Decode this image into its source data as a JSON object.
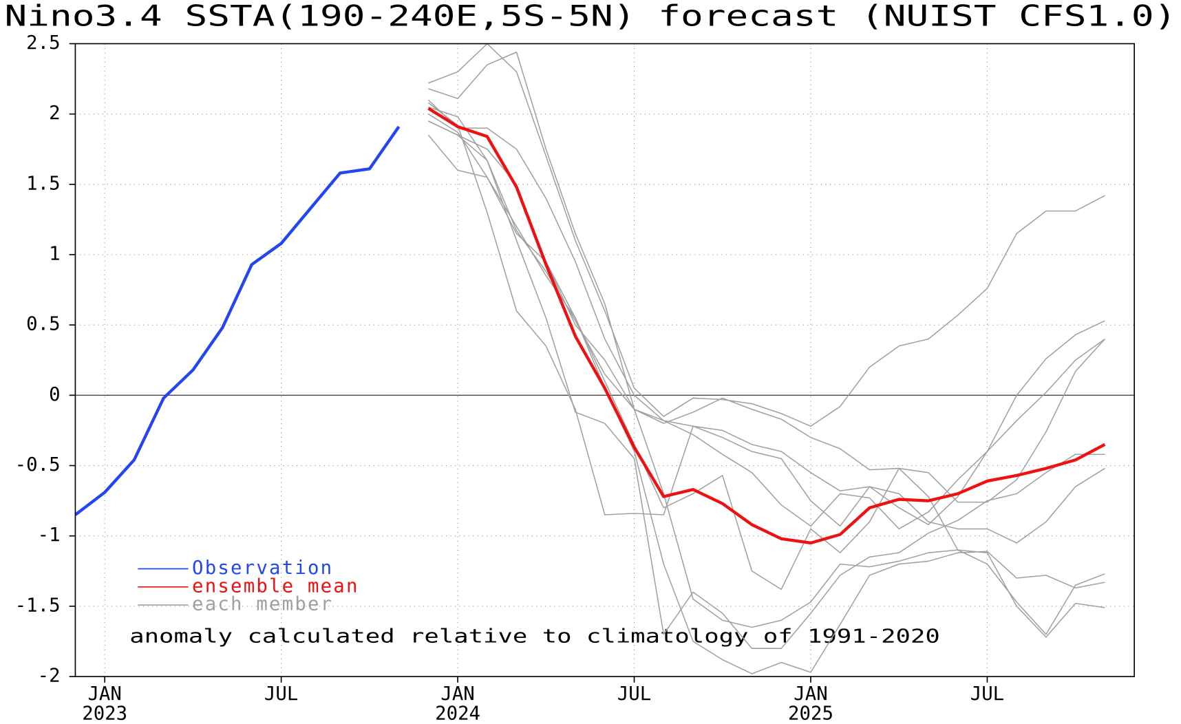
{
  "chart_data": {
    "type": "line",
    "title": "Nino3.4 SSTA(190-240E,5S-5N) forecast (NUIST CFS1.0)",
    "annotation": "anomaly calculated relative to climatology of 1991-2020",
    "x": [
      "2022-12",
      "2023-01",
      "2023-02",
      "2023-03",
      "2023-04",
      "2023-05",
      "2023-06",
      "2023-07",
      "2023-08",
      "2023-09",
      "2023-10",
      "2023-11",
      "2023-12",
      "2024-01",
      "2024-02",
      "2024-03",
      "2024-04",
      "2024-05",
      "2024-06",
      "2024-07",
      "2024-08",
      "2024-09",
      "2024-10",
      "2024-11",
      "2024-12",
      "2025-01",
      "2025-02",
      "2025-03",
      "2025-04",
      "2025-05",
      "2025-06",
      "2025-07",
      "2025-08",
      "2025-09",
      "2025-10",
      "2025-11"
    ],
    "xlim": [
      "2022-12",
      "2025-12"
    ],
    "xticks": [
      {
        "value": "2023-01",
        "label": "JAN",
        "year": "2023"
      },
      {
        "value": "2023-07",
        "label": "JUL"
      },
      {
        "value": "2024-01",
        "label": "JAN",
        "year": "2024"
      },
      {
        "value": "2024-07",
        "label": "JUL"
      },
      {
        "value": "2025-01",
        "label": "JAN",
        "year": "2025"
      },
      {
        "value": "2025-07",
        "label": "JUL"
      }
    ],
    "ylim": [
      -2,
      2.5
    ],
    "yticks": [
      -2,
      -1.5,
      -1,
      -0.5,
      0,
      0.5,
      1,
      1.5,
      2,
      2.5
    ],
    "grid": true,
    "legend": "lower left",
    "series": [
      {
        "name": "each member",
        "color": "#a0a0a0",
        "width": 1.4,
        "values": [
          null,
          null,
          null,
          null,
          null,
          null,
          null,
          null,
          null,
          null,
          null,
          null,
          2.22,
          2.3,
          2.5,
          2.3,
          1.7,
          1.1,
          0.6,
          0.05,
          -0.15,
          -0.02,
          -0.03,
          -0.06,
          -0.13,
          -0.22,
          -0.08,
          0.2,
          0.35,
          0.4,
          0.57,
          0.76,
          1.15,
          1.31,
          1.31,
          1.42
        ]
      },
      {
        "color": "#a0a0a0",
        "values": [
          null,
          null,
          null,
          null,
          null,
          null,
          null,
          null,
          null,
          null,
          null,
          null,
          2.18,
          2.11,
          2.35,
          2.44,
          1.75,
          1.15,
          0.65,
          -0.1,
          -0.2,
          -0.12,
          -0.02,
          -0.1,
          -0.17,
          -0.3,
          -0.38,
          -0.53,
          -0.52,
          -0.55,
          -0.76,
          -0.76,
          -0.6,
          -0.26,
          0.17,
          0.4
        ]
      },
      {
        "color": "#a0a0a0",
        "values": [
          null,
          null,
          null,
          null,
          null,
          null,
          null,
          null,
          null,
          null,
          null,
          null,
          2.1,
          1.9,
          1.9,
          1.75,
          1.4,
          0.95,
          0.4,
          0.0,
          -0.18,
          -0.22,
          -0.25,
          -0.35,
          -0.4,
          -0.55,
          -0.68,
          -0.65,
          -0.8,
          -0.92,
          -0.72,
          -0.4,
          0.0,
          0.26,
          0.43,
          0.53
        ]
      },
      {
        "color": "#a0a0a0",
        "values": [
          null,
          null,
          null,
          null,
          null,
          null,
          null,
          null,
          null,
          null,
          null,
          null,
          2.05,
          1.98,
          1.67,
          1.17,
          0.88,
          0.53,
          0.15,
          -0.1,
          -0.18,
          -0.28,
          -0.42,
          -0.55,
          -0.78,
          -0.93,
          -0.7,
          -0.73,
          -0.95,
          -0.83,
          -0.6,
          -0.4,
          -0.18,
          0.02,
          0.25,
          0.4
        ]
      },
      {
        "color": "#a0a0a0",
        "values": [
          null,
          null,
          null,
          null,
          null,
          null,
          null,
          null,
          null,
          null,
          null,
          null,
          1.95,
          1.85,
          1.67,
          1.1,
          0.55,
          -0.12,
          -0.2,
          -0.45,
          -1.7,
          -1.4,
          -1.55,
          -1.8,
          -1.8,
          -1.55,
          -1.28,
          -1.15,
          -1.12,
          -0.98,
          -0.89,
          -0.75,
          -0.7,
          -0.55,
          -0.42,
          -0.42
        ]
      },
      {
        "color": "#a0a0a0",
        "values": [
          null,
          null,
          null,
          null,
          null,
          null,
          null,
          null,
          null,
          null,
          null,
          null,
          2.0,
          1.87,
          1.55,
          1.2,
          0.85,
          0.55,
          0.05,
          -0.4,
          -1.2,
          -1.75,
          -1.88,
          -1.98,
          -1.9,
          -1.97,
          -1.63,
          -1.28,
          -1.2,
          -1.18,
          -1.12,
          -1.11,
          -1.3,
          -1.28,
          -1.37,
          -1.33
        ]
      },
      {
        "color": "#a0a0a0",
        "values": [
          null,
          null,
          null,
          null,
          null,
          null,
          null,
          null,
          null,
          null,
          null,
          null,
          1.85,
          1.6,
          1.55,
          1.15,
          0.95,
          0.5,
          0.25,
          -0.1,
          -0.7,
          -1.45,
          -1.6,
          -1.65,
          -1.6,
          -1.47,
          -1.2,
          -1.22,
          -1.18,
          -1.12,
          -1.1,
          -1.2,
          -1.47,
          -1.7,
          -1.35,
          -1.27
        ]
      },
      {
        "color": "#a0a0a0",
        "values": [
          null,
          null,
          null,
          null,
          null,
          null,
          null,
          null,
          null,
          null,
          null,
          null,
          2.08,
          1.92,
          1.3,
          0.6,
          0.35,
          -0.1,
          -0.85,
          -0.84,
          -0.85,
          -0.22,
          -0.3,
          -0.4,
          -0.45,
          -0.75,
          -0.93,
          -0.65,
          -0.7,
          -0.9,
          -0.95,
          -0.95,
          -1.05,
          -0.9,
          -0.65,
          -0.52
        ]
      },
      {
        "color": "#a0a0a0",
        "values": [
          null,
          null,
          null,
          null,
          null,
          null,
          null,
          null,
          null,
          null,
          null,
          null,
          1.95,
          1.85,
          1.75,
          1.5,
          0.95,
          0.55,
          0.1,
          -0.35,
          -0.8,
          -0.7,
          -0.57,
          -1.25,
          -1.38,
          -0.95,
          -1.12,
          -0.9,
          -0.52,
          -0.72,
          -1.1,
          -1.12,
          -1.5,
          -1.72,
          -1.48,
          -1.51
        ]
      },
      {
        "name": "Observation",
        "color": "#2446f0",
        "width": 4,
        "values": [
          -0.85,
          -0.69,
          -0.46,
          -0.02,
          0.18,
          0.48,
          0.93,
          1.08,
          1.33,
          1.58,
          1.61,
          1.91,
          null,
          null,
          null,
          null,
          null,
          null,
          null,
          null,
          null,
          null,
          null,
          null,
          null,
          null,
          null,
          null,
          null,
          null,
          null,
          null,
          null,
          null,
          null,
          null
        ]
      },
      {
        "name": "ensemble mean",
        "color": "#ee1111",
        "width": 4,
        "values": [
          null,
          null,
          null,
          null,
          null,
          null,
          null,
          null,
          null,
          null,
          null,
          null,
          2.04,
          1.91,
          1.84,
          1.48,
          0.93,
          0.42,
          0.05,
          -0.37,
          -0.72,
          -0.67,
          -0.77,
          -0.92,
          -1.02,
          -1.05,
          -0.99,
          -0.8,
          -0.74,
          -0.75,
          -0.7,
          -0.61,
          -0.57,
          -0.52,
          -0.46,
          -0.35
        ]
      }
    ]
  }
}
